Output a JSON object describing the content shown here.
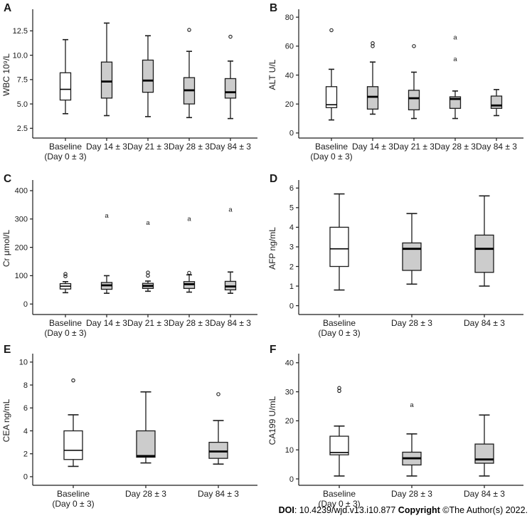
{
  "footer": {
    "doi_label": "DOI",
    "doi_value": ": 10.4239/wjd.v13.i10.877  ",
    "copyright_label": "Copyright",
    "copyright_value": " ©The Author(s) 2022."
  },
  "colors": {
    "box_white": "#ffffff",
    "box_gray": "#cccccc",
    "line": "#1c1c1c",
    "text": "#1a1a1a"
  },
  "chart_data": [
    {
      "type": "box",
      "panel": "A",
      "ylabel": "WBC 10⁹/L",
      "ylim": [
        1.5,
        14.5
      ],
      "yticks": [
        2.5,
        5.0,
        7.5,
        10.0,
        12.5
      ],
      "ytick_labels": [
        "2.5",
        "5.0",
        "7.5",
        "10.0",
        "12.5"
      ],
      "categories": [
        [
          "Baseline",
          "(Day 0 ± 3)"
        ],
        [
          "Day 14 ± 3"
        ],
        [
          "Day 21 ± 3"
        ],
        [
          "Day 28 ± 3"
        ],
        [
          "Day 84 ± 3"
        ]
      ],
      "boxes": [
        {
          "low": 4.0,
          "q1": 5.4,
          "median": 6.5,
          "q3": 8.2,
          "high": 11.6,
          "fill": "white",
          "outliers": []
        },
        {
          "low": 3.8,
          "q1": 5.6,
          "median": 7.3,
          "q3": 9.3,
          "high": 13.3,
          "fill": "gray",
          "outliers": []
        },
        {
          "low": 3.7,
          "q1": 6.2,
          "median": 7.4,
          "q3": 9.5,
          "high": 12.0,
          "fill": "gray",
          "outliers": []
        },
        {
          "low": 3.6,
          "q1": 5.0,
          "median": 6.4,
          "q3": 7.7,
          "high": 10.4,
          "fill": "gray",
          "outliers": [
            {
              "value": 12.6,
              "marker": "circle"
            }
          ]
        },
        {
          "low": 3.5,
          "q1": 5.6,
          "median": 6.2,
          "q3": 7.6,
          "high": 9.4,
          "fill": "gray",
          "outliers": [
            {
              "value": 11.9,
              "marker": "circle"
            }
          ]
        }
      ]
    },
    {
      "type": "box",
      "panel": "B",
      "ylabel": "ALT U/L",
      "ylim": [
        -3.5,
        84
      ],
      "yticks": [
        0,
        20,
        40,
        60,
        80
      ],
      "ytick_labels": [
        "0",
        "20",
        "40",
        "60",
        "80"
      ],
      "categories": [
        [
          "Baseline",
          "(Day 0 ± 3)"
        ],
        [
          "Day 14 ± 3"
        ],
        [
          "Day 21 ± 3"
        ],
        [
          "Day 28 ± 3"
        ],
        [
          "Day 84 ± 3"
        ]
      ],
      "boxes": [
        {
          "low": 9,
          "q1": 17.5,
          "median": 19.5,
          "q3": 32,
          "high": 44,
          "fill": "white",
          "outliers": [
            {
              "value": 71,
              "marker": "circle"
            }
          ]
        },
        {
          "low": 13,
          "q1": 16.5,
          "median": 25,
          "q3": 32,
          "high": 49,
          "fill": "gray",
          "outliers": [
            {
              "value": 60,
              "marker": "circle"
            },
            {
              "value": 62,
              "marker": "circle"
            }
          ]
        },
        {
          "low": 10,
          "q1": 16,
          "median": 24,
          "q3": 29.5,
          "high": 42,
          "fill": "gray",
          "outliers": [
            {
              "value": 60,
              "marker": "circle"
            }
          ]
        },
        {
          "low": 10,
          "q1": 17,
          "median": 23.5,
          "q3": 25,
          "high": 29,
          "fill": "gray",
          "outliers": [
            {
              "value": 51,
              "marker": "a"
            },
            {
              "value": 66,
              "marker": "a"
            }
          ]
        },
        {
          "low": 12,
          "q1": 17,
          "median": 19,
          "q3": 25.5,
          "high": 30,
          "fill": "gray",
          "outliers": []
        }
      ]
    },
    {
      "type": "box",
      "panel": "C",
      "ylabel": "Cr μmol/L",
      "ylim": [
        -37,
        430
      ],
      "yticks": [
        0,
        100,
        200,
        300,
        400
      ],
      "ytick_labels": [
        "0",
        "100",
        "200",
        "300",
        "400"
      ],
      "categories": [
        [
          "Baseline",
          "(Day 0 ± 3)"
        ],
        [
          "Day 14 ± 3"
        ],
        [
          "Day 21 ± 3"
        ],
        [
          "Day 28 ± 3"
        ],
        [
          "Day 84 ± 3"
        ]
      ],
      "boxes": [
        {
          "low": 40,
          "q1": 53,
          "median": 63,
          "q3": 72,
          "high": 79,
          "fill": "white",
          "outliers": [
            {
              "value": 98,
              "marker": "circle"
            },
            {
              "value": 106,
              "marker": "circle"
            }
          ]
        },
        {
          "low": 38,
          "q1": 52,
          "median": 66,
          "q3": 76,
          "high": 100,
          "fill": "gray",
          "outliers": [
            {
              "value": 312,
              "marker": "a"
            }
          ]
        },
        {
          "low": 45,
          "q1": 55,
          "median": 64,
          "q3": 73,
          "high": 81,
          "fill": "gray",
          "outliers": [
            {
              "value": 100,
              "marker": "circle"
            },
            {
              "value": 111,
              "marker": "circle"
            },
            {
              "value": 287,
              "marker": "a"
            }
          ]
        },
        {
          "low": 42,
          "q1": 55,
          "median": 70,
          "q3": 79,
          "high": 103,
          "fill": "gray",
          "outliers": [
            {
              "value": 110,
              "marker": "circle"
            },
            {
              "value": 301,
              "marker": "a"
            }
          ]
        },
        {
          "low": 38,
          "q1": 50,
          "median": 62,
          "q3": 80,
          "high": 113,
          "fill": "gray",
          "outliers": [
            {
              "value": 333,
              "marker": "a"
            }
          ]
        }
      ]
    },
    {
      "type": "box",
      "panel": "D",
      "ylabel": "AFP ng/mL",
      "ylim": [
        -0.45,
        6.3
      ],
      "yticks": [
        0,
        1,
        2,
        3,
        4,
        5,
        6
      ],
      "ytick_labels": [
        "0",
        "1",
        "2",
        "3",
        "4",
        "5",
        "6"
      ],
      "categories": [
        [
          "Baseline",
          "(Day 0 ± 3)"
        ],
        [
          "Day 28 ± 3"
        ],
        [
          "Day 84 ± 3"
        ]
      ],
      "boxes": [
        {
          "low": 0.8,
          "q1": 2.0,
          "median": 2.9,
          "q3": 4.0,
          "high": 5.7,
          "fill": "white",
          "outliers": []
        },
        {
          "low": 1.1,
          "q1": 1.8,
          "median": 2.9,
          "q3": 3.2,
          "high": 4.7,
          "fill": "gray",
          "outliers": []
        },
        {
          "low": 1.0,
          "q1": 1.7,
          "median": 2.9,
          "q3": 3.6,
          "high": 5.6,
          "fill": "gray",
          "outliers": []
        }
      ]
    },
    {
      "type": "box",
      "panel": "E",
      "ylabel": "CEA ng/mL",
      "ylim": [
        -0.75,
        10.55
      ],
      "yticks": [
        0,
        2,
        4,
        6,
        8,
        10
      ],
      "ytick_labels": [
        "0",
        "2",
        "4",
        "6",
        "8",
        "10"
      ],
      "categories": [
        [
          "Baseline",
          "(Day 0 ± 3)"
        ],
        [
          "Day 28 ± 3"
        ],
        [
          "Day 84 ± 3"
        ]
      ],
      "boxes": [
        {
          "low": 0.9,
          "q1": 1.5,
          "median": 2.3,
          "q3": 4.0,
          "high": 5.4,
          "fill": "white",
          "outliers": [
            {
              "value": 8.4,
              "marker": "circle"
            }
          ]
        },
        {
          "low": 1.2,
          "q1": 1.7,
          "median": 1.8,
          "q3": 4.0,
          "high": 7.4,
          "fill": "gray",
          "outliers": []
        },
        {
          "low": 1.1,
          "q1": 1.6,
          "median": 2.2,
          "q3": 3.0,
          "high": 4.9,
          "fill": "gray",
          "outliers": [
            {
              "value": 7.2,
              "marker": "circle"
            }
          ]
        }
      ]
    },
    {
      "type": "box",
      "panel": "F",
      "ylabel": "CA199 U/mL",
      "ylim": [
        -2.2,
        42.4
      ],
      "yticks": [
        0,
        10,
        20,
        30,
        40
      ],
      "ytick_labels": [
        "0",
        "10",
        "20",
        "30",
        "40"
      ],
      "categories": [
        [
          "Baseline",
          "(Day 0 ± 3)"
        ],
        [
          "Day 28 ± 3"
        ],
        [
          "Day 84 ± 3"
        ]
      ],
      "boxes": [
        {
          "low": 1.0,
          "q1": 8.3,
          "median": 9.1,
          "q3": 14.7,
          "high": 18.2,
          "fill": "white",
          "outliers": [
            {
              "value": 30.3,
              "marker": "circle"
            },
            {
              "value": 31.3,
              "marker": "circle"
            }
          ]
        },
        {
          "low": 1.0,
          "q1": 4.8,
          "median": 7.1,
          "q3": 9.2,
          "high": 15.5,
          "fill": "gray",
          "outliers": [
            {
              "value": 25.5,
              "marker": "a"
            }
          ]
        },
        {
          "low": 1.0,
          "q1": 5.4,
          "median": 6.7,
          "q3": 12.0,
          "high": 22.0,
          "fill": "gray",
          "outliers": []
        }
      ]
    }
  ]
}
